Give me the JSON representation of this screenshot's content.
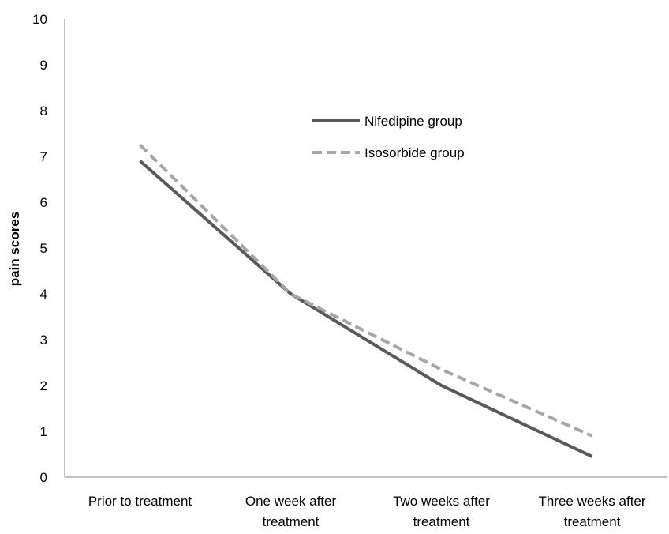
{
  "chart_data": {
    "type": "line",
    "title": "",
    "xlabel": "",
    "ylabel": "pain scores",
    "ylim": [
      0,
      10
    ],
    "yticks": [
      "0",
      "1",
      "2",
      "3",
      "4",
      "5",
      "6",
      "7",
      "8",
      "9",
      "10"
    ],
    "categories": [
      [
        "Prior to treatment"
      ],
      [
        "One week after",
        "treatment"
      ],
      [
        "Two weeks after",
        "treatment"
      ],
      [
        "Three weeks after",
        "treatment"
      ]
    ],
    "series": [
      {
        "name": "Nifedipine group",
        "values": [
          6.9,
          4.0,
          2.0,
          0.45
        ],
        "color": "#595959",
        "dash": "solid"
      },
      {
        "name": "Isosorbide group",
        "values": [
          7.25,
          4.0,
          2.35,
          0.9
        ],
        "color": "#a6a6a6",
        "dash": "dashed"
      }
    ],
    "grid": false,
    "legend_position": "top-center"
  }
}
